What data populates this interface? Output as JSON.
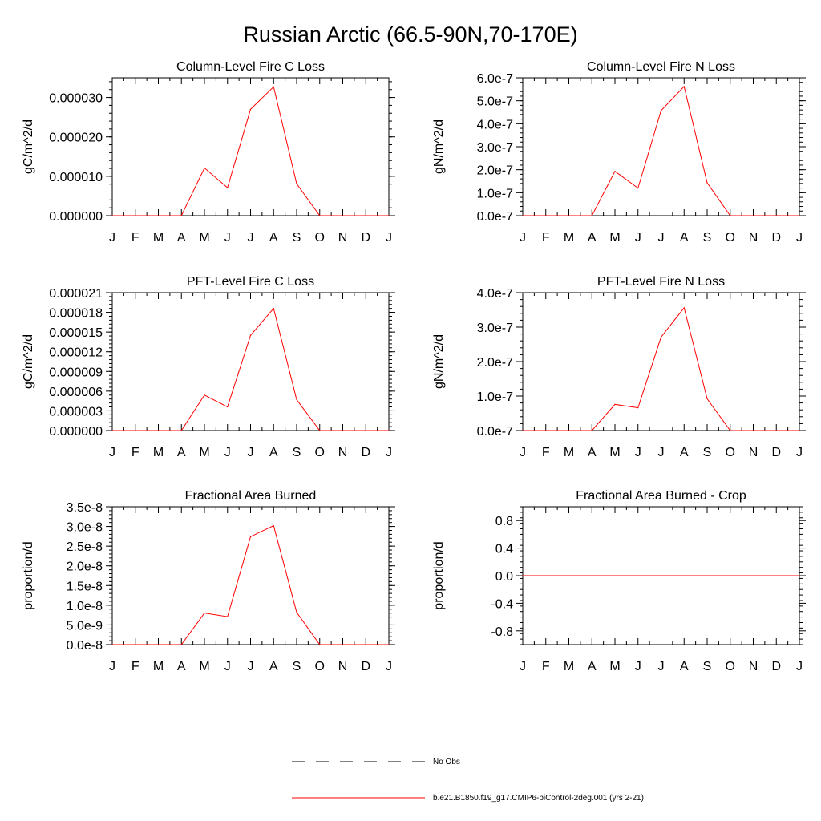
{
  "page_title": "Russian Arctic (66.5-90N,70-170E)",
  "colors": {
    "model": "#ff0000",
    "obs": "#000000",
    "axis": "#000000"
  },
  "legend": {
    "obs_label": "No Obs",
    "model_label": "b.e21.B1850.f19_g17.CMIP6-piControl-2deg.001 (yrs 2-21)"
  },
  "chart_data": [
    {
      "type": "line",
      "title": "Column-Level Fire C Loss",
      "xlabel": "",
      "ylabel": "gC/m^2/d",
      "categories": [
        "J",
        "F",
        "M",
        "A",
        "M",
        "J",
        "J",
        "A",
        "S",
        "O",
        "N",
        "D",
        "J"
      ],
      "ylim": [
        0,
        3.5e-05
      ],
      "yticks": [
        0,
        1e-05,
        2e-05,
        3e-05
      ],
      "ytick_labels": [
        "0.000000",
        "0.000010",
        "0.000020",
        "0.000030"
      ],
      "series": [
        {
          "name": "b.e21.B1850.f19_g17.CMIP6-piControl-2deg.001 (yrs 2-21)",
          "values": [
            0,
            0,
            0,
            0,
            1.21e-05,
            7.1e-06,
            2.7e-05,
            3.27e-05,
            8.1e-06,
            0,
            0,
            0,
            0
          ]
        }
      ]
    },
    {
      "type": "line",
      "title": "Column-Level Fire N Loss",
      "xlabel": "",
      "ylabel": "gN/m^2/d",
      "categories": [
        "J",
        "F",
        "M",
        "A",
        "M",
        "J",
        "J",
        "A",
        "S",
        "O",
        "N",
        "D",
        "J"
      ],
      "ylim": [
        0,
        6e-07
      ],
      "yticks": [
        0,
        1e-07,
        2e-07,
        3e-07,
        4e-07,
        5e-07,
        6e-07
      ],
      "ytick_labels": [
        "0.0e-7",
        "1.0e-7",
        "2.0e-7",
        "3.0e-7",
        "4.0e-7",
        "5.0e-7",
        "6.0e-7"
      ],
      "series": [
        {
          "name": "b.e21.B1850.f19_g17.CMIP6-piControl-2deg.001 (yrs 2-21)",
          "values": [
            0,
            0,
            0,
            0,
            1.93e-07,
            1.2e-07,
            4.57e-07,
            5.62e-07,
            1.43e-07,
            0,
            0,
            0,
            0
          ]
        }
      ]
    },
    {
      "type": "line",
      "title": "PFT-Level Fire C Loss",
      "xlabel": "",
      "ylabel": "gC/m^2/d",
      "categories": [
        "J",
        "F",
        "M",
        "A",
        "M",
        "J",
        "J",
        "A",
        "S",
        "O",
        "N",
        "D",
        "J"
      ],
      "ylim": [
        0,
        2.1e-05
      ],
      "yticks": [
        0,
        3e-06,
        6e-06,
        9e-06,
        1.2e-05,
        1.5e-05,
        1.8e-05,
        2.1e-05
      ],
      "ytick_labels": [
        "0.000000",
        "0.000003",
        "0.000006",
        "0.000009",
        "0.000012",
        "0.000015",
        "0.000018",
        "0.000021"
      ],
      "series": [
        {
          "name": "b.e21.B1850.f19_g17.CMIP6-piControl-2deg.001 (yrs 2-21)",
          "values": [
            0,
            0,
            0,
            0,
            5.4e-06,
            3.6e-06,
            1.45e-05,
            1.86e-05,
            4.7e-06,
            0,
            0,
            0,
            0
          ]
        }
      ]
    },
    {
      "type": "line",
      "title": "PFT-Level Fire N Loss",
      "xlabel": "",
      "ylabel": "gN/m^2/d",
      "categories": [
        "J",
        "F",
        "M",
        "A",
        "M",
        "J",
        "J",
        "A",
        "S",
        "O",
        "N",
        "D",
        "J"
      ],
      "ylim": [
        0,
        4e-07
      ],
      "yticks": [
        0,
        1e-07,
        2e-07,
        3e-07,
        4e-07
      ],
      "ytick_labels": [
        "0.0e-7",
        "1.0e-7",
        "2.0e-7",
        "3.0e-7",
        "4.0e-7"
      ],
      "series": [
        {
          "name": "b.e21.B1850.f19_g17.CMIP6-piControl-2deg.001 (yrs 2-21)",
          "values": [
            0,
            0,
            0,
            0,
            7.6e-08,
            6.6e-08,
            2.71e-07,
            3.56e-07,
            9.2e-08,
            0,
            0,
            0,
            0
          ]
        }
      ]
    },
    {
      "type": "line",
      "title": "Fractional Area Burned",
      "xlabel": "",
      "ylabel": "proportion/d",
      "categories": [
        "J",
        "F",
        "M",
        "A",
        "M",
        "J",
        "J",
        "A",
        "S",
        "O",
        "N",
        "D",
        "J"
      ],
      "ylim": [
        0,
        3.5e-08
      ],
      "yticks": [
        0,
        5e-09,
        1e-08,
        1.5e-08,
        2e-08,
        2.5e-08,
        3e-08,
        3.5e-08
      ],
      "ytick_labels": [
        "0.0e-8",
        "5.0e-9",
        "1.0e-8",
        "1.5e-8",
        "2.0e-8",
        "2.5e-8",
        "3.0e-8",
        "3.5e-8"
      ],
      "series": [
        {
          "name": "b.e21.B1850.f19_g17.CMIP6-piControl-2deg.001 (yrs 2-21)",
          "values": [
            0,
            0,
            0,
            0,
            8e-09,
            7.1e-09,
            2.74e-08,
            3.02e-08,
            8.2e-09,
            0,
            0,
            0,
            0
          ]
        }
      ]
    },
    {
      "type": "line",
      "title": "Fractional Area Burned - Crop",
      "xlabel": "",
      "ylabel": "proportion/d",
      "categories": [
        "J",
        "F",
        "M",
        "A",
        "M",
        "J",
        "J",
        "A",
        "S",
        "O",
        "N",
        "D",
        "J"
      ],
      "ylim": [
        -1,
        1
      ],
      "yticks": [
        -0.8,
        -0.4,
        0,
        0.4,
        0.8
      ],
      "ytick_labels": [
        "-0.8",
        "-0.4",
        "0.0",
        "0.4",
        "0.8"
      ],
      "series": [
        {
          "name": "b.e21.B1850.f19_g17.CMIP6-piControl-2deg.001 (yrs 2-21)",
          "values": [
            0,
            0,
            0,
            0,
            0,
            0,
            0,
            0,
            0,
            0,
            0,
            0,
            0
          ]
        }
      ]
    }
  ]
}
